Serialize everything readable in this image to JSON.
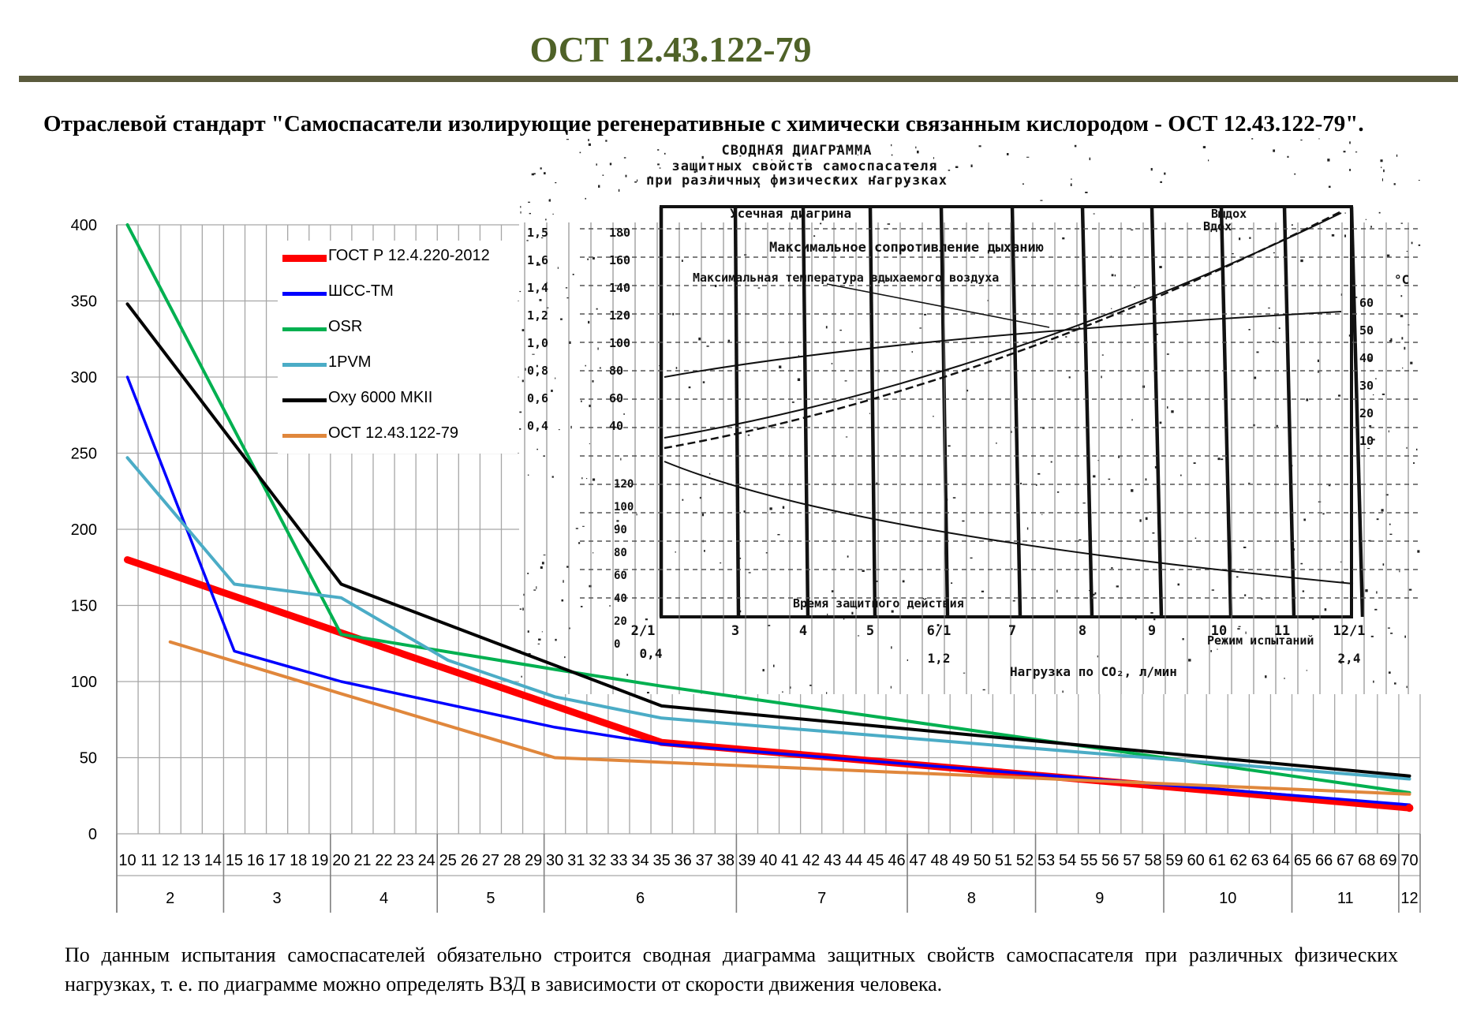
{
  "header": {
    "title": "ОСТ 12.43.122-79",
    "subtitle": "Отраслевой стандарт \"Самоспасатели изолирующие регенеративные с химически связанным кислородом - ОСТ 12.43.122-79\"."
  },
  "footer": {
    "text": "По данным испытания самоспасателей обязательно строится сводная диаграмма защитных свойств самоспасателя при различных физических нагрузках, т. е. по диаграмме можно определять ВЗД в зависимости от скорости движения человека."
  },
  "colors": {
    "title": "#4f6228",
    "grid": "#a6a6a6"
  },
  "chart_data": {
    "type": "line",
    "ylim": [
      0,
      400
    ],
    "yticks": [
      0,
      50,
      100,
      150,
      200,
      250,
      300,
      350,
      400
    ],
    "xlim": [
      10,
      70
    ],
    "x_ticks": [
      10,
      11,
      12,
      13,
      14,
      15,
      16,
      17,
      18,
      19,
      20,
      21,
      22,
      23,
      24,
      25,
      26,
      27,
      28,
      29,
      30,
      31,
      32,
      33,
      34,
      35,
      36,
      37,
      38,
      39,
      40,
      41,
      42,
      43,
      44,
      45,
      46,
      47,
      48,
      49,
      50,
      51,
      52,
      53,
      54,
      55,
      56,
      57,
      58,
      59,
      60,
      61,
      62,
      63,
      64,
      65,
      66,
      67,
      68,
      69,
      70
    ],
    "mode_groups": [
      {
        "label": "2",
        "from": 10,
        "to": 14
      },
      {
        "label": "3",
        "from": 15,
        "to": 19
      },
      {
        "label": "4",
        "from": 20,
        "to": 24
      },
      {
        "label": "5",
        "from": 25,
        "to": 29
      },
      {
        "label": "6",
        "from": 30,
        "to": 38
      },
      {
        "label": "7",
        "from": 39,
        "to": 46
      },
      {
        "label": "8",
        "from": 47,
        "to": 52
      },
      {
        "label": "9",
        "from": 53,
        "to": 58
      },
      {
        "label": "10",
        "from": 59,
        "to": 64
      },
      {
        "label": "11",
        "from": 65,
        "to": 69
      },
      {
        "label": "12",
        "from": 70,
        "to": 70
      }
    ],
    "legend_position": "top-left",
    "grid": true,
    "series": [
      {
        "name": "ГОСТ Р 12.4.220-2012",
        "color": "#ff0000",
        "width": 9,
        "x": [
          10,
          20,
          35,
          70
        ],
        "y": [
          180,
          132,
          60,
          17
        ]
      },
      {
        "name": "ШСС-ТМ",
        "color": "#0000ff",
        "width": 3.5,
        "x": [
          10,
          15,
          20,
          30,
          35,
          70
        ],
        "y": [
          300,
          120,
          100,
          70,
          59,
          19
        ]
      },
      {
        "name": "OSR",
        "color": "#00b050",
        "width": 4,
        "x": [
          10,
          20,
          30,
          35,
          70
        ],
        "y": [
          400,
          131,
          108,
          97,
          27
        ]
      },
      {
        "name": "1PVM",
        "color": "#4bacc6",
        "width": 4,
        "x": [
          10,
          15,
          20,
          25,
          30,
          35,
          70
        ],
        "y": [
          247,
          164,
          155,
          114,
          90,
          76,
          36
        ]
      },
      {
        "name": "Oxy 6000 MKII",
        "color": "#000000",
        "width": 4,
        "x": [
          10,
          20,
          35,
          70
        ],
        "y": [
          348,
          164,
          84,
          38
        ]
      },
      {
        "name": "ОСТ 12.43.122-79",
        "color": "#e0873c",
        "width": 4,
        "x": [
          12,
          20,
          30,
          70
        ],
        "y": [
          126,
          92,
          50,
          26
        ]
      }
    ]
  },
  "scan_insert": {
    "title_lines": [
      "СВОДНАЯ ДИАГРАММА",
      "защитных свойств самоспасателя",
      "при различных физических нагрузках"
    ],
    "labels": [
      "Усечная диагрина",
      "Выдох",
      "Вдох",
      "Максимальное сопротивление дыханию",
      "Максимальная температура вдыхаемого воздуха",
      "Время защитного действия",
      "Режим испытаний",
      "Нагрузка по CO₂, л/мин"
    ],
    "left_scale_a": [
      "1,5",
      "1,6",
      "1,4",
      "1,2",
      "1,0",
      "0,8",
      "0,6",
      "0,4"
    ],
    "left_scale_b": [
      "180",
      "160",
      "140",
      "120",
      "100",
      "80",
      "60",
      "40"
    ],
    "left_scale_c": [
      "120",
      "100",
      "90",
      "80",
      "60",
      "40",
      "20",
      "0"
    ],
    "right_scale": [
      "60",
      "50",
      "40",
      "30",
      "20",
      "10"
    ],
    "right_unit": "°C",
    "bottom_modes": [
      "2/1",
      "3",
      "4",
      "5",
      "6/1",
      "7",
      "8",
      "9",
      "10",
      "11",
      "12/1"
    ],
    "bottom_loads": [
      "0,4",
      "1,2",
      "2,4"
    ]
  }
}
